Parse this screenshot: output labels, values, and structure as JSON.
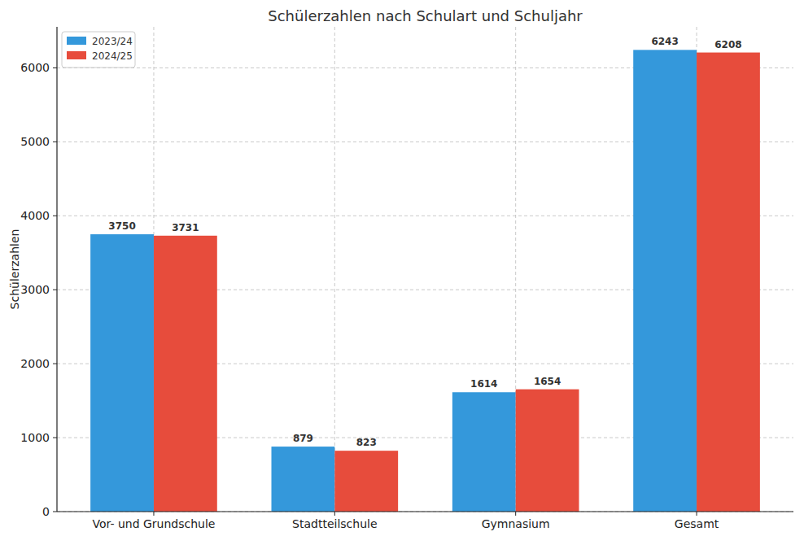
{
  "chart_data": {
    "type": "bar",
    "title": "Schülerzahlen nach Schulart und Schuljahr",
    "y_label": "Schülerzahlen",
    "categories": [
      "Vor- und Grundschule",
      "Stadtteilschule",
      "Gymnasium",
      "Gesamt"
    ],
    "series": [
      {
        "name": "2023/24",
        "color": "#3498db",
        "values": [
          3750,
          879,
          1614,
          6243
        ]
      },
      {
        "name": "2024/25",
        "color": "#e74c3c",
        "values": [
          3731,
          823,
          1654,
          6208
        ]
      }
    ],
    "ylim": [
      0,
      6555
    ],
    "yticks": [
      0,
      1000,
      2000,
      3000,
      4000,
      5000,
      6000
    ],
    "grid": true,
    "legend": "upper left",
    "data_labels": true
  }
}
